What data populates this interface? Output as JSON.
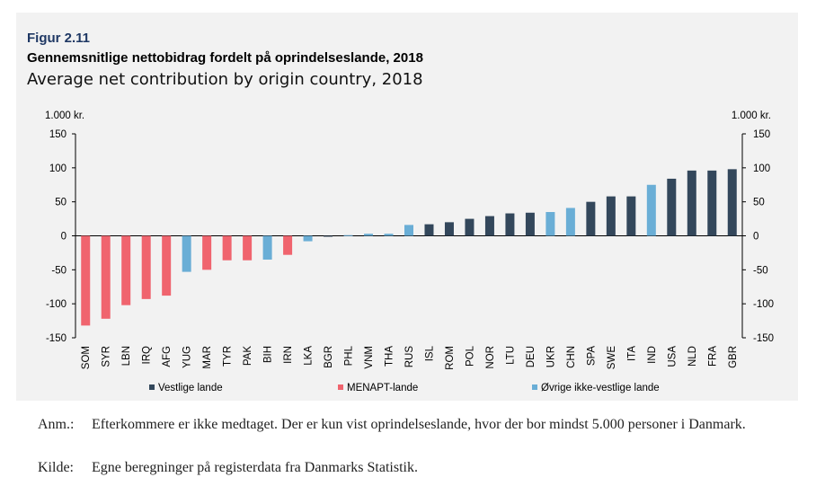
{
  "figure": {
    "label": "Figur 2.11",
    "title": "Gennemsnitlige nettobidrag fordelt på oprindelseslande, 2018",
    "subtitle": "Average net contribution by origin country, 2018"
  },
  "colors": {
    "panel_bg": "#f2f2f2",
    "vestlige": "#33475b",
    "menapt": "#f0646e",
    "ovrige": "#6aaed6",
    "title_blue": "#1f3864"
  },
  "chart_data": {
    "type": "bar",
    "unit_label_left": "1.000 kr.",
    "unit_label_right": "1.000 kr.",
    "ylim": [
      -150,
      150
    ],
    "yticks": [
      150,
      100,
      50,
      0,
      -50,
      -100,
      -150
    ],
    "categories": [
      "SOM",
      "SYR",
      "LBN",
      "IRQ",
      "AFG",
      "YUG",
      "MAR",
      "TYR",
      "PAK",
      "BIH",
      "IRN",
      "LKA",
      "BGR",
      "PHL",
      "VNM",
      "THA",
      "RUS",
      "ISL",
      "ROM",
      "POL",
      "NOR",
      "LTU",
      "DEU",
      "UKR",
      "CHN",
      "SPA",
      "SWE",
      "ITA",
      "IND",
      "USA",
      "NLD",
      "FRA",
      "GBR"
    ],
    "values": [
      -132,
      -122,
      -102,
      -93,
      -88,
      -53,
      -50,
      -36,
      -36,
      -35,
      -28,
      -8,
      -1,
      1,
      3,
      3,
      16,
      17,
      20,
      25,
      29,
      33,
      34,
      35,
      41,
      50,
      58,
      58,
      75,
      84,
      96,
      96,
      98
    ],
    "groups": [
      "menapt",
      "menapt",
      "menapt",
      "menapt",
      "menapt",
      "ovrige",
      "menapt",
      "menapt",
      "menapt",
      "ovrige",
      "menapt",
      "ovrige",
      "vestlige",
      "ovrige",
      "ovrige",
      "ovrige",
      "ovrige",
      "vestlige",
      "vestlige",
      "vestlige",
      "vestlige",
      "vestlige",
      "vestlige",
      "ovrige",
      "ovrige",
      "vestlige",
      "vestlige",
      "vestlige",
      "ovrige",
      "vestlige",
      "vestlige",
      "vestlige",
      "vestlige"
    ],
    "legend": [
      {
        "key": "vestlige",
        "label": "Vestlige lande"
      },
      {
        "key": "menapt",
        "label": "MENAPT-lande"
      },
      {
        "key": "ovrige",
        "label": "Øvrige ikke-vestlige lande"
      }
    ]
  },
  "notes": {
    "anm_tag": "Anm.:",
    "anm_text": "Efterkommere er ikke medtaget. Der er kun vist oprindelseslande, hvor der bor mindst 5.000 personer i Danmark.",
    "kilde_tag": "Kilde:",
    "kilde_text": "Egne beregninger på registerdata fra Danmarks Statistik."
  }
}
